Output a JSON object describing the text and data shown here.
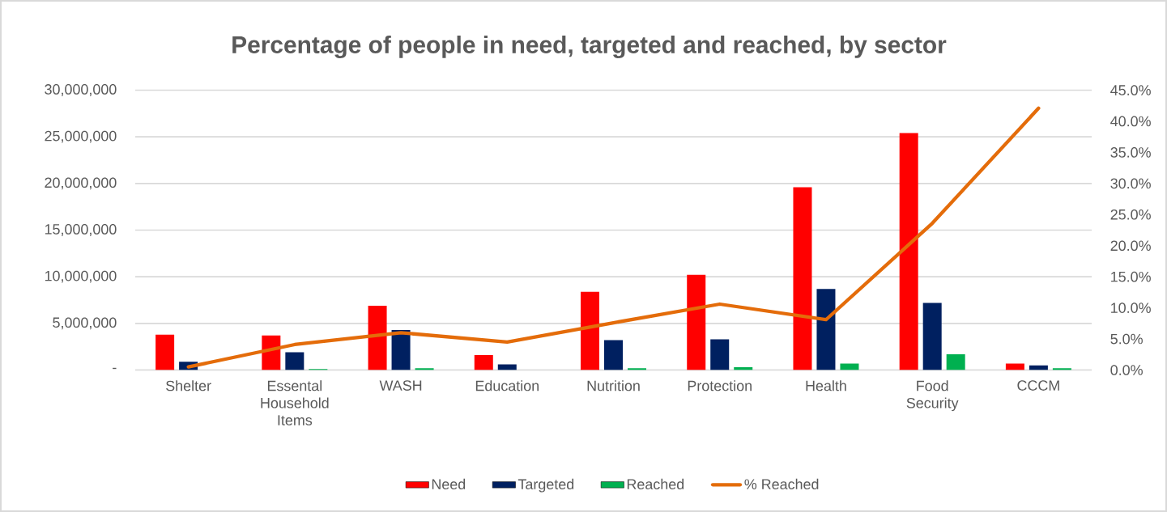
{
  "chart_data": {
    "type": "bar",
    "title": "Percentage of people in need, targeted and reached, by sector",
    "categories": [
      "Shelter",
      "Essental Household Items",
      "WASH",
      "Education",
      "Nutrition",
      "Protection",
      "Health",
      "Food Security",
      "CCCM"
    ],
    "series": [
      {
        "name": "Need",
        "color": "#ff0000",
        "values": [
          3800000,
          3700000,
          6900000,
          1600000,
          8400000,
          10200000,
          19600000,
          25400000,
          700000
        ]
      },
      {
        "name": "Targeted",
        "color": "#002060",
        "values": [
          900000,
          1900000,
          4300000,
          600000,
          3200000,
          3300000,
          8700000,
          7200000,
          500000
        ]
      },
      {
        "name": "Reached",
        "color": "#00b050",
        "values": [
          0,
          100000,
          200000,
          0,
          200000,
          300000,
          700000,
          1700000,
          200000
        ]
      },
      {
        "name": "% Reached",
        "type": "line",
        "axis": "y2",
        "color": "#e46c0a",
        "values": [
          0.5,
          4.1,
          6.0,
          4.5,
          7.6,
          10.6,
          8.1,
          23.6,
          42.1
        ]
      }
    ],
    "ylim": [
      0,
      30000000
    ],
    "yticks": [
      {
        "value": 0,
        "label": "-"
      },
      {
        "value": 5000000,
        "label": "5,000,000"
      },
      {
        "value": 10000000,
        "label": "10,000,000"
      },
      {
        "value": 15000000,
        "label": "15,000,000"
      },
      {
        "value": 20000000,
        "label": "20,000,000"
      },
      {
        "value": 25000000,
        "label": "25,000,000"
      },
      {
        "value": 30000000,
        "label": "30,000,000"
      }
    ],
    "y2lim": [
      0,
      45
    ],
    "y2ticks": [
      {
        "value": 0,
        "label": "0.0%"
      },
      {
        "value": 5,
        "label": "5.0%"
      },
      {
        "value": 10,
        "label": "10.0%"
      },
      {
        "value": 15,
        "label": "15.0%"
      },
      {
        "value": 20,
        "label": "20.0%"
      },
      {
        "value": 25,
        "label": "25.0%"
      },
      {
        "value": 30,
        "label": "30.0%"
      },
      {
        "value": 35,
        "label": "35.0%"
      },
      {
        "value": 40,
        "label": "40.0%"
      },
      {
        "value": 45,
        "label": "45.0%"
      }
    ],
    "grid": "y",
    "legend": "bottom"
  }
}
